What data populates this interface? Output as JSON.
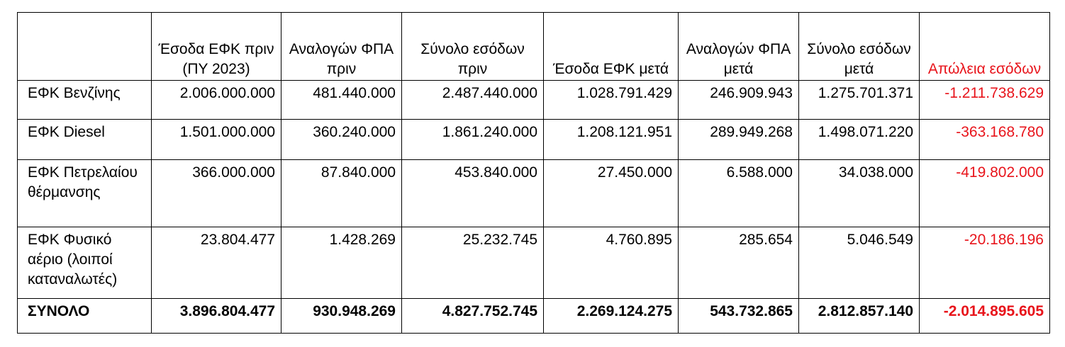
{
  "colors": {
    "loss": "#e8141b",
    "border": "#000000"
  },
  "headers": [
    "",
    "Έσοδα ΕΦΚ πριν (ΠΥ 2023)",
    "Αναλογών ΦΠΑ πριν",
    "Σύνολο εσόδων πριν",
    "Έσοδα ΕΦΚ μετά",
    "Αναλογών ΦΠΑ μετά",
    "Σύνολο εσόδων μετά",
    "Απώλεια εσόδων"
  ],
  "rows": [
    {
      "label": "ΕΦΚ Βενζίνης",
      "values": [
        "2.006.000.000",
        "481.440.000",
        "2.487.440.000",
        "1.028.791.429",
        "246.909.943",
        "1.275.701.371",
        "-1.211.738.629"
      ]
    },
    {
      "label": "ΕΦΚ Diesel",
      "values": [
        "1.501.000.000",
        "360.240.000",
        "1.861.240.000",
        "1.208.121.951",
        "289.949.268",
        "1.498.071.220",
        "-363.168.780"
      ]
    },
    {
      "label": "ΕΦΚ Πετρελαίου θέρμανσης",
      "values": [
        "366.000.000",
        "87.840.000",
        "453.840.000",
        "27.450.000",
        "6.588.000",
        "34.038.000",
        "-419.802.000"
      ]
    },
    {
      "label": "ΕΦΚ Φυσικό αέριο (λοιποί καταναλωτές)",
      "values": [
        "23.804.477",
        "1.428.269",
        "25.232.745",
        "4.760.895",
        "285.654",
        "5.046.549",
        "-20.186.196"
      ]
    }
  ],
  "total": {
    "label": "ΣΥΝΟΛΟ",
    "values": [
      "3.896.804.477",
      "930.948.269",
      "4.827.752.745",
      "2.269.124.275",
      "543.732.865",
      "2.812.857.140",
      "-2.014.895.605"
    ]
  }
}
